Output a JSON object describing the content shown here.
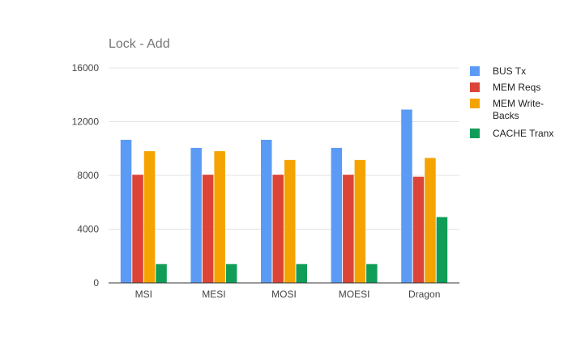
{
  "chart_data": {
    "type": "bar",
    "title": "Lock - Add",
    "xlabel": "",
    "ylabel": "",
    "categories": [
      "MSI",
      "MESI",
      "MOSI",
      "MOESI",
      "Dragon"
    ],
    "ylim": [
      0,
      16000
    ],
    "yticks": [
      0,
      4000,
      8000,
      12000,
      16000
    ],
    "grid": true,
    "legend_position": "right",
    "series": [
      {
        "name": "BUS Tx",
        "color": "#5B9BF5",
        "values": [
          10650,
          10050,
          10650,
          10050,
          12900
        ]
      },
      {
        "name": "MEM Reqs",
        "color": "#DB4437",
        "values": [
          8050,
          8050,
          8050,
          8050,
          7900
        ]
      },
      {
        "name": "MEM Write-Backs",
        "legend_lines": [
          "MEM Write-",
          "Backs"
        ],
        "color": "#F4A300",
        "values": [
          9800,
          9800,
          9150,
          9150,
          9300
        ]
      },
      {
        "name": "CACHE Tranx",
        "color": "#0F9D58",
        "values": [
          1400,
          1400,
          1400,
          1400,
          4900
        ]
      }
    ]
  }
}
